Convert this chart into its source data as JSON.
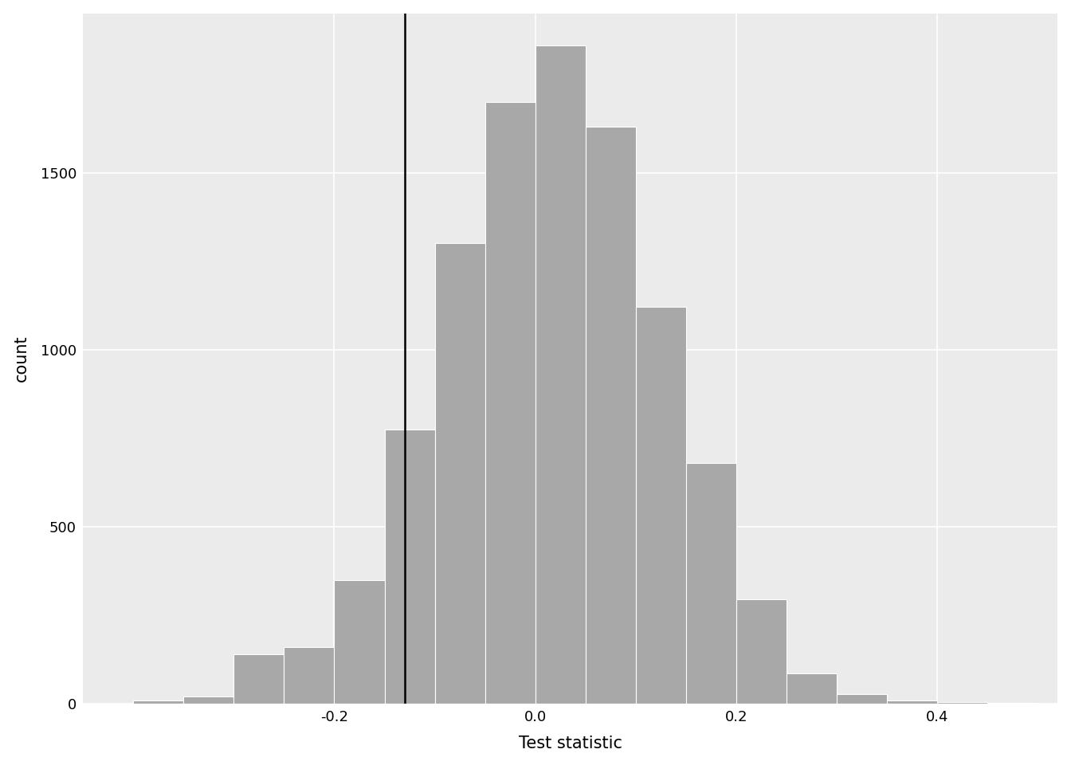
{
  "title": "",
  "xlabel": "Test statistic",
  "ylabel": "count",
  "bar_color": "#a8a8a8",
  "bar_edgecolor": "#ffffff",
  "vline_x": -0.13,
  "vline_color": "#000000",
  "vline_linewidth": 1.8,
  "background_color": "#ffffff",
  "panel_color": "#ebebeb",
  "grid_color": "#ffffff",
  "xlim": [
    -0.45,
    0.52
  ],
  "ylim": [
    0,
    1950
  ],
  "xticks": [
    -0.2,
    0.0,
    0.2,
    0.4
  ],
  "yticks": [
    0,
    500,
    1000,
    1500
  ],
  "bin_edges": [
    -0.4,
    -0.35,
    -0.3,
    -0.25,
    -0.2,
    -0.15,
    -0.1,
    -0.05,
    0.0,
    0.05,
    0.1,
    0.15,
    0.2,
    0.25,
    0.3,
    0.35,
    0.4,
    0.45,
    0.5
  ],
  "bin_counts": [
    10,
    20,
    140,
    160,
    350,
    775,
    1300,
    1700,
    1860,
    1630,
    1120,
    680,
    295,
    85,
    28,
    10,
    5,
    2
  ]
}
